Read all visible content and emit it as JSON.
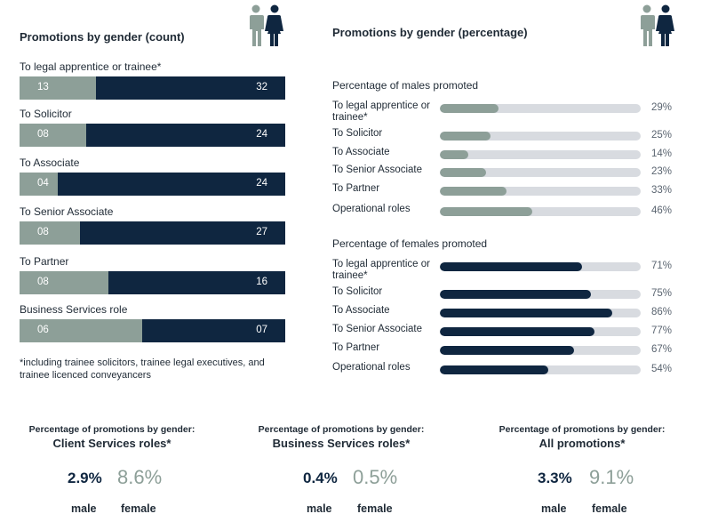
{
  "colors": {
    "male": "#8d9f98",
    "female": "#0f2640",
    "track": "#d8dbe0"
  },
  "icons": [
    "male-person-icon",
    "female-person-icon"
  ],
  "chart_data": [
    {
      "type": "bar",
      "title": "Promotions by gender (count)",
      "stacked": true,
      "orientation": "horizontal",
      "categories": [
        "To legal apprentice or trainee*",
        "To Solicitor",
        "To Associate",
        "To Senior Associate",
        "To Partner",
        "Business Services role"
      ],
      "series": [
        {
          "values": [
            13,
            8,
            4,
            8,
            8,
            6
          ],
          "labels": [
            "13",
            "08",
            "04",
            "08",
            "08",
            "06"
          ]
        },
        {
          "values": [
            32,
            24,
            24,
            27,
            16,
            7
          ],
          "labels": [
            "32",
            "24",
            "24",
            "27",
            "16",
            "07"
          ]
        }
      ],
      "footnote": "*including trainee solicitors, trainee legal executives, and trainee licenced conveyancers"
    },
    {
      "type": "bar",
      "title": "Promotions by gender (percentage)",
      "subtitle": "Percentage of males promoted",
      "orientation": "horizontal",
      "categories": [
        "To legal apprentice or trainee*",
        "To Solicitor",
        "To Associate",
        "To Senior Associate",
        "To Partner",
        "Operational roles"
      ],
      "values": [
        29,
        25,
        14,
        23,
        33,
        46
      ],
      "labels": [
        "29%",
        "25%",
        "14%",
        "23%",
        "33%",
        "46%"
      ],
      "xlim": [
        0,
        100
      ]
    },
    {
      "type": "bar",
      "subtitle": "Percentage of females promoted",
      "orientation": "horizontal",
      "categories": [
        "To legal apprentice or trainee*",
        "To Solicitor",
        "To Associate",
        "To Senior Associate",
        "To Partner",
        "Operational roles"
      ],
      "values": [
        71,
        75,
        86,
        77,
        67,
        54
      ],
      "labels": [
        "71%",
        "75%",
        "86%",
        "77%",
        "67%",
        "54%"
      ],
      "xlim": [
        0,
        100
      ]
    }
  ],
  "summaries": [
    {
      "caption": "Percentage of promotions by gender:",
      "title": "Client Services roles*",
      "male_value": "2.9%",
      "female_value": "8.6%",
      "male_label": "male",
      "female_label": "female"
    },
    {
      "caption": "Percentage of promotions by gender:",
      "title": "Business Services roles*",
      "male_value": "0.4%",
      "female_value": "0.5%",
      "male_label": "male",
      "female_label": "female"
    },
    {
      "caption": "Percentage of promotions by gender:",
      "title": "All promotions*",
      "male_value": "3.3%",
      "female_value": "9.1%",
      "male_label": "male",
      "female_label": "female"
    }
  ]
}
